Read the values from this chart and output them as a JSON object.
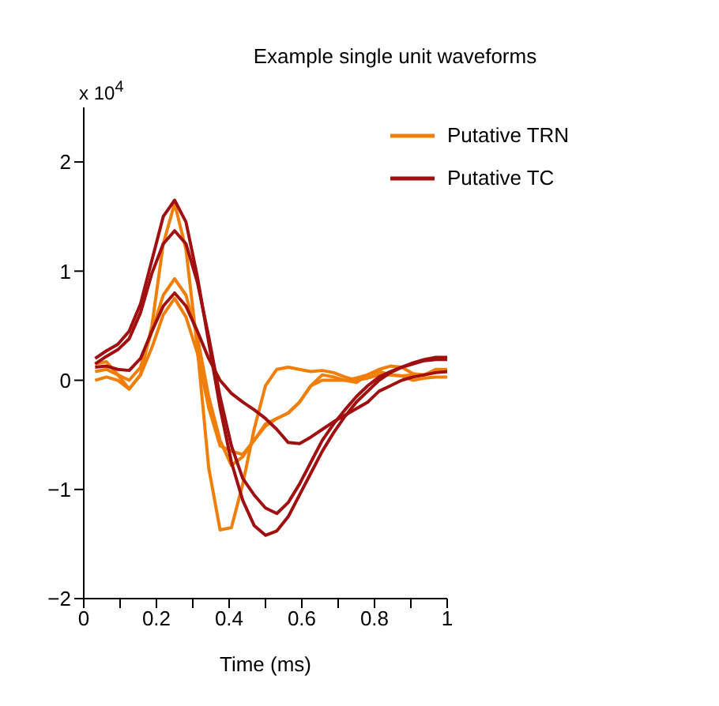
{
  "chart_data": {
    "type": "line",
    "title": "Example single unit waveforms",
    "xlabel": "Time (ms)",
    "annotations": [
      "x 10$^{4}$"
    ],
    "x": [
      0.03125,
      0.0625,
      0.09375,
      0.125,
      0.15625,
      0.1875,
      0.21875,
      0.25,
      0.28125,
      0.3125,
      0.34375,
      0.375,
      0.40625,
      0.4375,
      0.46875,
      0.5,
      0.53125,
      0.5625,
      0.59375,
      0.625,
      0.65625,
      0.6875,
      0.71875,
      0.75,
      0.78125,
      0.8125,
      0.84375,
      0.875,
      0.90625,
      0.9375,
      0.96875,
      1
    ],
    "series": [
      {
        "name": "Putative TRN",
        "color": "#f07f0a",
        "values": [
          0.15,
          0.17,
          0.05,
          -0.08,
          0.05,
          0.5,
          1.25,
          1.62,
          1.2,
          0.3,
          -0.8,
          -1.37,
          -1.35,
          -0.95,
          -0.45,
          -0.05,
          0.1,
          0.12,
          0.1,
          0.08,
          0.09,
          0.07,
          0.03,
          0.0,
          0.02,
          0.05,
          0.05,
          0.04,
          0.05,
          0.05,
          0.08,
          0.08
        ]
      },
      {
        "color": "#f07f0a",
        "values": [
          0.08,
          0.1,
          0.05,
          0.0,
          0.12,
          0.45,
          0.78,
          0.93,
          0.78,
          0.4,
          -0.15,
          -0.55,
          -0.78,
          -0.7,
          -0.55,
          -0.42,
          -0.35,
          -0.3,
          -0.2,
          -0.05,
          0.05,
          0.03,
          0.0,
          -0.02,
          0.05,
          0.1,
          0.13,
          0.12,
          0.06,
          0.05,
          0.1,
          0.1
        ]
      },
      {
        "color": "#f07f0a",
        "values": [
          0.0,
          0.03,
          0.0,
          -0.08,
          0.05,
          0.3,
          0.6,
          0.75,
          0.58,
          0.25,
          -0.25,
          -0.6,
          -0.65,
          -0.68,
          -0.55,
          -0.4,
          -0.35,
          -0.3,
          -0.2,
          -0.05,
          0.0,
          0.0,
          0.0,
          0.02,
          0.05,
          0.08,
          0.05,
          0.04,
          0.0,
          0.02,
          0.03,
          0.03
        ]
      },
      {
        "name": "Putative TC",
        "color": "#a01010",
        "values": [
          0.2,
          0.27,
          0.33,
          0.45,
          0.7,
          1.1,
          1.5,
          1.65,
          1.45,
          0.95,
          0.35,
          -0.25,
          -0.75,
          -1.1,
          -1.33,
          -1.42,
          -1.38,
          -1.25,
          -1.05,
          -0.85,
          -0.65,
          -0.48,
          -0.33,
          -0.2,
          -0.1,
          0.0,
          0.07,
          0.12,
          0.16,
          0.19,
          0.21,
          0.21
        ]
      },
      {
        "color": "#a01010",
        "values": [
          0.15,
          0.22,
          0.28,
          0.38,
          0.62,
          0.98,
          1.25,
          1.37,
          1.25,
          0.9,
          0.4,
          -0.15,
          -0.6,
          -0.9,
          -1.05,
          -1.17,
          -1.22,
          -1.12,
          -0.95,
          -0.75,
          -0.55,
          -0.4,
          -0.27,
          -0.15,
          -0.05,
          0.03,
          0.08,
          0.12,
          0.15,
          0.18,
          0.19,
          0.19
        ]
      },
      {
        "color": "#a01010",
        "values": [
          0.12,
          0.13,
          0.1,
          0.09,
          0.2,
          0.45,
          0.68,
          0.8,
          0.68,
          0.45,
          0.2,
          0.0,
          -0.12,
          -0.2,
          -0.27,
          -0.35,
          -0.45,
          -0.57,
          -0.58,
          -0.52,
          -0.45,
          -0.38,
          -0.32,
          -0.26,
          -0.2,
          -0.1,
          -0.05,
          0.0,
          0.03,
          0.05,
          0.07,
          0.08
        ]
      }
    ],
    "xlim": [
      0,
      1
    ],
    "xticks": [
      0,
      {
        "value": 0.1,
        "label": null
      },
      0.2,
      {
        "value": 0.3,
        "label": null
      },
      0.4,
      {
        "value": 0.5,
        "label": null
      },
      0.6,
      {
        "value": 0.7,
        "label": null
      },
      0.8,
      {
        "value": 0.9,
        "label": null
      },
      1
    ],
    "ylim": [
      -2,
      2.5
    ],
    "yticks": [
      -2,
      -1,
      0,
      1,
      2
    ],
    "grid": false,
    "legend": "top right"
  }
}
